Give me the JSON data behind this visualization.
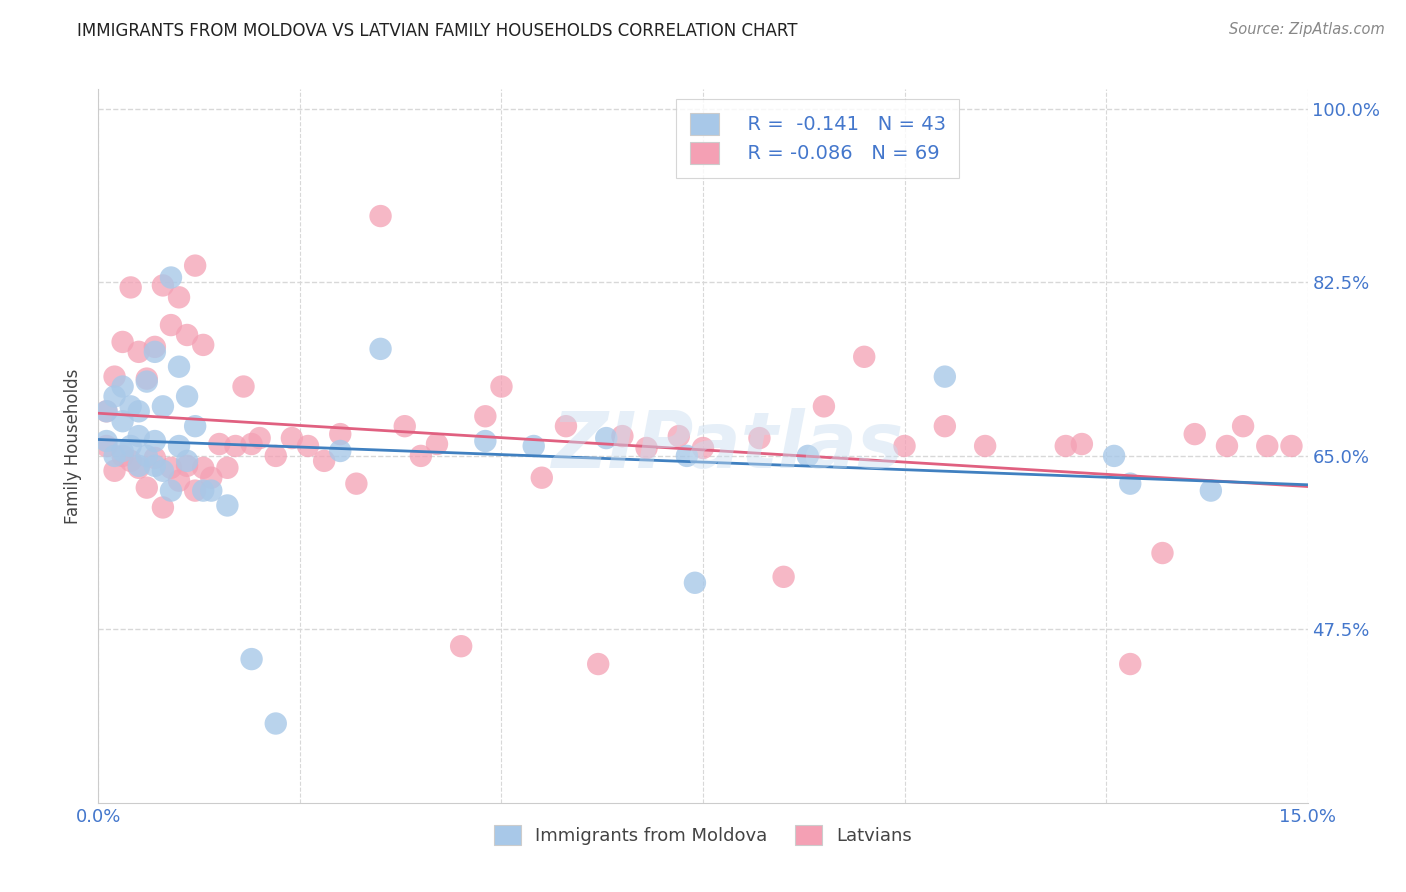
{
  "title": "IMMIGRANTS FROM MOLDOVA VS LATVIAN FAMILY HOUSEHOLDS CORRELATION CHART",
  "source": "Source: ZipAtlas.com",
  "ylabel": "Family Households",
  "xlim": [
    0.0,
    0.15
  ],
  "ylim": [
    0.3,
    1.02
  ],
  "ytick_positions": [
    0.475,
    0.65,
    0.825,
    1.0
  ],
  "ytick_labels": [
    "47.5%",
    "65.0%",
    "82.5%",
    "100.0%"
  ],
  "xtick_positions": [
    0.0,
    0.025,
    0.05,
    0.075,
    0.1,
    0.125,
    0.15
  ],
  "xtick_labels": [
    "0.0%",
    "",
    "",
    "",
    "",
    "",
    "15.0%"
  ],
  "legend_blue_r": "R =  -0.141",
  "legend_blue_n": "N = 43",
  "legend_pink_r": "R = -0.086",
  "legend_pink_n": "N = 69",
  "legend_label_blue": "Immigrants from Moldova",
  "legend_label_pink": "Latvians",
  "blue_color": "#a8c8e8",
  "pink_color": "#f4a0b4",
  "line_blue_color": "#4080c0",
  "line_pink_color": "#e06080",
  "text_blue_color": "#4477cc",
  "grid_color": "#d8d8d8",
  "watermark": "ZIPatlas",
  "blue_x": [
    0.001,
    0.001,
    0.002,
    0.002,
    0.003,
    0.003,
    0.003,
    0.004,
    0.004,
    0.005,
    0.005,
    0.005,
    0.006,
    0.006,
    0.007,
    0.007,
    0.007,
    0.008,
    0.008,
    0.009,
    0.009,
    0.01,
    0.01,
    0.011,
    0.011,
    0.012,
    0.013,
    0.014,
    0.016,
    0.019,
    0.022,
    0.03,
    0.035,
    0.048,
    0.054,
    0.063,
    0.073,
    0.074,
    0.088,
    0.105,
    0.126,
    0.128,
    0.138
  ],
  "blue_y": [
    0.665,
    0.695,
    0.65,
    0.71,
    0.655,
    0.685,
    0.72,
    0.66,
    0.7,
    0.64,
    0.67,
    0.695,
    0.65,
    0.725,
    0.64,
    0.665,
    0.755,
    0.635,
    0.7,
    0.615,
    0.83,
    0.66,
    0.74,
    0.645,
    0.71,
    0.68,
    0.615,
    0.615,
    0.6,
    0.445,
    0.38,
    0.655,
    0.758,
    0.665,
    0.66,
    0.668,
    0.65,
    0.522,
    0.65,
    0.73,
    0.65,
    0.622,
    0.615
  ],
  "pink_x": [
    0.001,
    0.001,
    0.002,
    0.002,
    0.003,
    0.003,
    0.004,
    0.004,
    0.005,
    0.005,
    0.006,
    0.006,
    0.007,
    0.007,
    0.008,
    0.008,
    0.009,
    0.009,
    0.01,
    0.01,
    0.011,
    0.011,
    0.012,
    0.012,
    0.013,
    0.013,
    0.014,
    0.015,
    0.016,
    0.017,
    0.018,
    0.019,
    0.02,
    0.022,
    0.024,
    0.026,
    0.028,
    0.03,
    0.032,
    0.035,
    0.038,
    0.04,
    0.042,
    0.045,
    0.048,
    0.05,
    0.055,
    0.058,
    0.062,
    0.065,
    0.068,
    0.072,
    0.075,
    0.082,
    0.085,
    0.09,
    0.095,
    0.1,
    0.105,
    0.11,
    0.12,
    0.122,
    0.128,
    0.132,
    0.136,
    0.14,
    0.142,
    0.145,
    0.148
  ],
  "pink_y": [
    0.66,
    0.695,
    0.635,
    0.73,
    0.65,
    0.765,
    0.645,
    0.82,
    0.638,
    0.755,
    0.618,
    0.728,
    0.648,
    0.76,
    0.598,
    0.822,
    0.638,
    0.782,
    0.625,
    0.81,
    0.64,
    0.772,
    0.615,
    0.842,
    0.638,
    0.762,
    0.628,
    0.662,
    0.638,
    0.66,
    0.72,
    0.662,
    0.668,
    0.65,
    0.668,
    0.66,
    0.645,
    0.672,
    0.622,
    0.892,
    0.68,
    0.65,
    0.662,
    0.458,
    0.69,
    0.72,
    0.628,
    0.68,
    0.44,
    0.67,
    0.658,
    0.67,
    0.658,
    0.668,
    0.528,
    0.7,
    0.75,
    0.66,
    0.68,
    0.66,
    0.66,
    0.662,
    0.44,
    0.552,
    0.672,
    0.66,
    0.68,
    0.66,
    0.66
  ]
}
